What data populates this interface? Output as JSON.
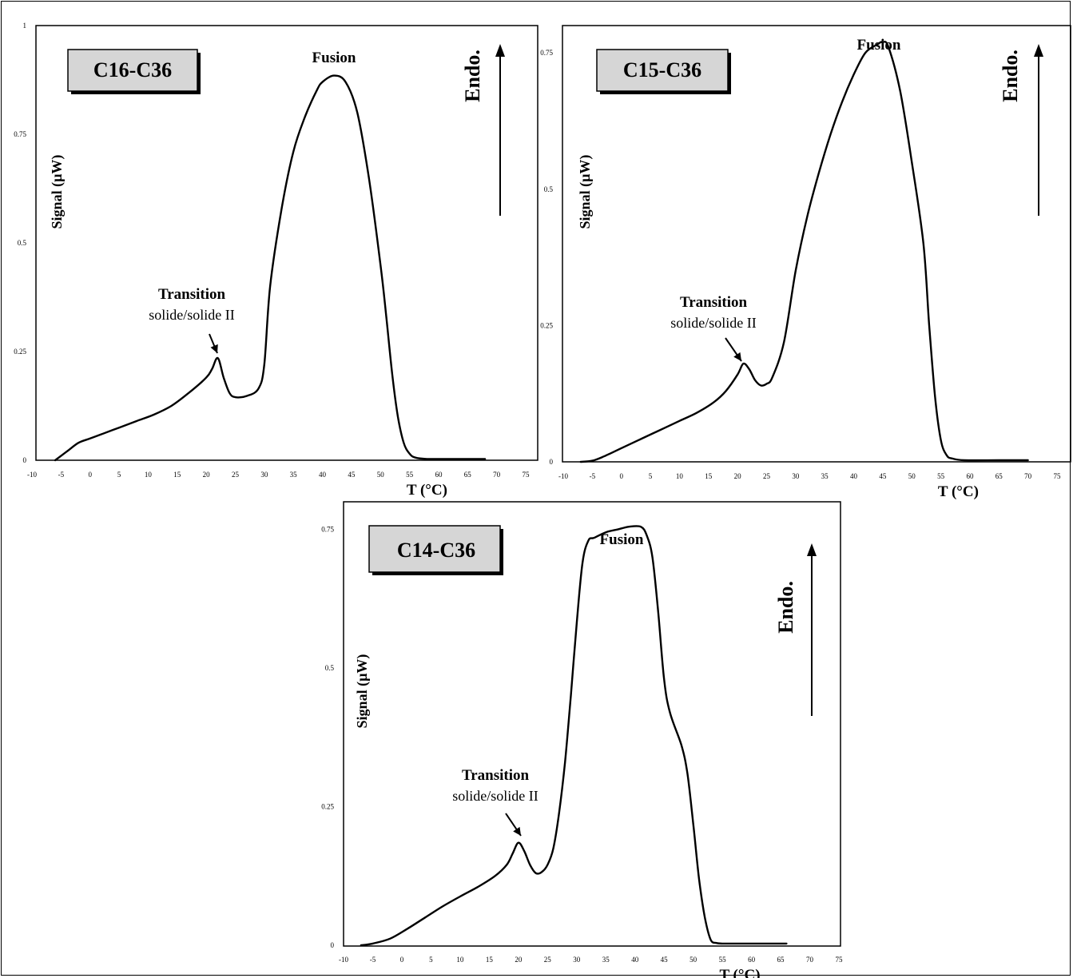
{
  "chart_data": [
    {
      "type": "line",
      "sample": "C16-C36",
      "xlabel": "T (°C)",
      "ylabel": "Signal (µW)",
      "direction_label": "Endo.",
      "peak_label": "Fusion",
      "transition_label": [
        "Transition",
        "solide/solide II"
      ],
      "xlim": [
        -10,
        75
      ],
      "ylim": [
        0,
        1
      ],
      "x_ticks": [
        "-10",
        "-5",
        "0",
        "5",
        "10",
        "15",
        "20",
        "25",
        "30",
        "35",
        "40",
        "45",
        "50",
        "55",
        "60",
        "65",
        "70",
        "75"
      ],
      "y_ticks": [
        "0",
        "0.25",
        "0.5",
        "0.75",
        "1"
      ],
      "x": [
        -6,
        -4,
        -2,
        0,
        2,
        5,
        8,
        11,
        14,
        17,
        20,
        21,
        22,
        23,
        24,
        25,
        27,
        29,
        30,
        31,
        33,
        35,
        37,
        39,
        40,
        42,
        44,
        46,
        48,
        50,
        51,
        52,
        53,
        54,
        55,
        56,
        58,
        62,
        68
      ],
      "y": [
        0,
        0.02,
        0.04,
        0.05,
        0.06,
        0.075,
        0.09,
        0.105,
        0.125,
        0.155,
        0.19,
        0.21,
        0.235,
        0.19,
        0.155,
        0.145,
        0.148,
        0.165,
        0.22,
        0.4,
        0.58,
        0.71,
        0.79,
        0.85,
        0.87,
        0.885,
        0.87,
        0.8,
        0.65,
        0.45,
        0.33,
        0.2,
        0.1,
        0.04,
        0.015,
        0.006,
        0.003,
        0.003,
        0.003
      ]
    },
    {
      "type": "line",
      "sample": "C15-C36",
      "xlabel": "T (°C)",
      "ylabel": "Signal (µW)",
      "direction_label": "Endo.",
      "peak_label": "Fusion",
      "transition_label": [
        "Transition",
        "solide/solide II"
      ],
      "xlim": [
        -10,
        75
      ],
      "ylim": [
        0,
        0.8
      ],
      "x_ticks": [
        "-10",
        "-5",
        "0",
        "5",
        "10",
        "15",
        "20",
        "25",
        "30",
        "35",
        "40",
        "45",
        "50",
        "55",
        "60",
        "65",
        "70",
        "75"
      ],
      "y_ticks": [
        "0",
        "0.25",
        "0.5",
        "0.75"
      ],
      "x": [
        -7,
        -5,
        -3,
        0,
        3,
        6,
        10,
        13,
        16,
        18,
        20,
        21,
        22,
        23,
        24,
        25,
        26,
        28,
        30,
        32,
        34,
        36,
        38,
        40,
        42,
        44,
        45,
        46,
        48,
        50,
        52,
        53,
        54,
        55,
        56,
        57,
        59,
        65,
        70
      ],
      "y": [
        0,
        0.002,
        0.01,
        0.025,
        0.04,
        0.055,
        0.075,
        0.09,
        0.11,
        0.13,
        0.16,
        0.18,
        0.17,
        0.15,
        0.14,
        0.143,
        0.155,
        0.22,
        0.35,
        0.45,
        0.53,
        0.6,
        0.66,
        0.71,
        0.75,
        0.765,
        0.77,
        0.76,
        0.68,
        0.55,
        0.4,
        0.25,
        0.12,
        0.04,
        0.012,
        0.006,
        0.003,
        0.003,
        0.003
      ]
    },
    {
      "type": "line",
      "sample": "C14-C36",
      "xlabel": "T (°C)",
      "ylabel": "Signal (µW)",
      "direction_label": "Endo.",
      "peak_label": "Fusion",
      "transition_label": [
        "Transition",
        "solide/solide II"
      ],
      "xlim": [
        -10,
        75
      ],
      "ylim": [
        0,
        0.8
      ],
      "x_ticks": [
        "-10",
        "-5",
        "0",
        "5",
        "10",
        "15",
        "20",
        "25",
        "30",
        "35",
        "40",
        "45",
        "50",
        "55",
        "60",
        "65",
        "70",
        "75"
      ],
      "y_ticks": [
        "0",
        "0.25",
        "0.5",
        "0.75"
      ],
      "x": [
        -7,
        -5,
        -2,
        1,
        4,
        7,
        10,
        13,
        16,
        18,
        19,
        20,
        21,
        22,
        23,
        24,
        25,
        26,
        27,
        28,
        29,
        30,
        31,
        32,
        33,
        35,
        37,
        39,
        41,
        42,
        43,
        44,
        45,
        46,
        48,
        49,
        50,
        51,
        52,
        53,
        54,
        55,
        56,
        58,
        62,
        66
      ],
      "y": [
        0,
        0.003,
        0.012,
        0.03,
        0.05,
        0.07,
        0.088,
        0.105,
        0.125,
        0.145,
        0.165,
        0.185,
        0.17,
        0.145,
        0.13,
        0.132,
        0.145,
        0.175,
        0.24,
        0.33,
        0.45,
        0.58,
        0.69,
        0.73,
        0.735,
        0.745,
        0.75,
        0.755,
        0.755,
        0.74,
        0.7,
        0.6,
        0.48,
        0.42,
        0.36,
        0.31,
        0.22,
        0.12,
        0.05,
        0.01,
        0.004,
        0.003,
        0.003,
        0.003,
        0.003,
        0.003
      ]
    }
  ]
}
